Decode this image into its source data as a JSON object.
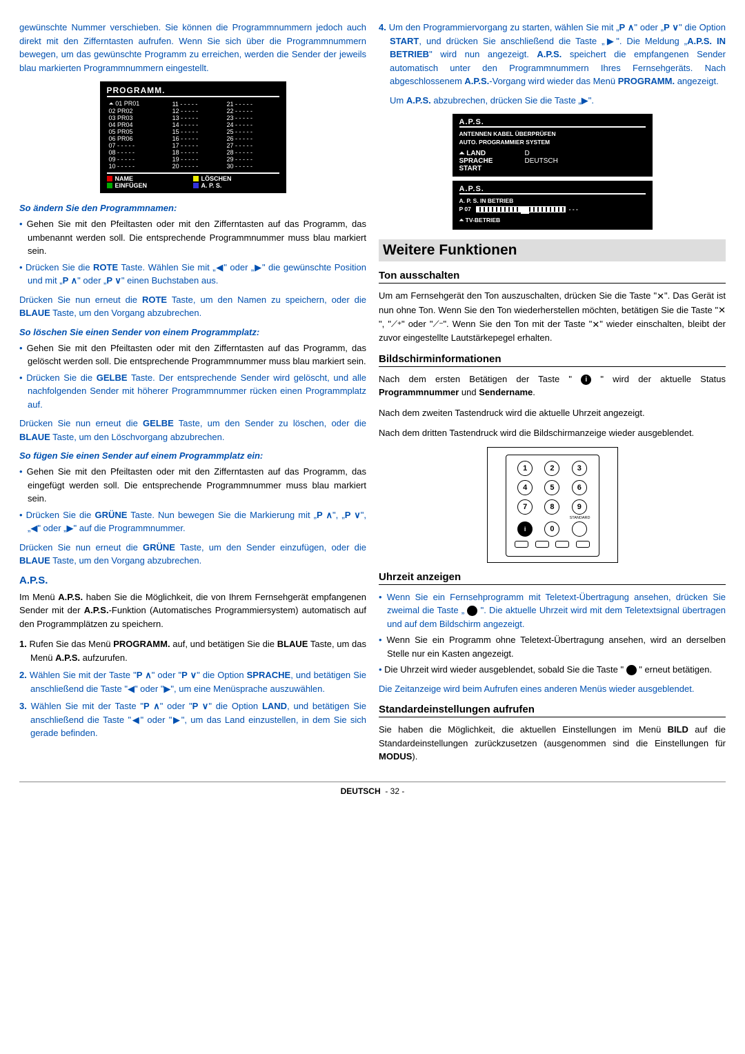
{
  "colLeft": {
    "intro": "gewünschte Nummer verschieben. Sie können die Programmnummern jedoch auch direkt mit den Zifferntasten aufrufen. Wenn Sie sich über die Programmnummern bewegen, um das gewünschte Programm zu erreichen, werden die Sender der jeweils blau markierten Programmnummern eingestellt.",
    "programmBox": {
      "title": "PROGRAMM.",
      "rows": [
        [
          "⏶ 01  PR01",
          "11  - - - - -",
          "21  - - - - -"
        ],
        [
          "  02  PR02",
          "12  - - - - -",
          "22  - - - - -"
        ],
        [
          "  03  PR03",
          "13  - - - - -",
          "23  - - - - -"
        ],
        [
          "  04  PR04",
          "14  - - - - -",
          "24  - - - - -"
        ],
        [
          "  05  PR05",
          "15  - - - - -",
          "25  - - - - -"
        ],
        [
          "  06  PR06",
          "16  - - - - -",
          "26  - - - - -"
        ],
        [
          "  07  - - - - -",
          "17  - - - - -",
          "27  - - - - -"
        ],
        [
          "  08  - - - - -",
          "18  - - - - -",
          "28  - - - - -"
        ],
        [
          "  09  - - - - -",
          "19  - - - - -",
          "29  - - - - -"
        ],
        [
          "  10  - - - - -",
          "20  - - - - -",
          "30  - - - - -"
        ]
      ],
      "footer": [
        "NAME",
        "LÖSCHEN",
        "EINFÜGEN",
        "A. P. S."
      ]
    },
    "sub1": "So ändern Sie den Programmnamen:",
    "sub1_b1": "Gehen Sie mit den Pfeiltasten oder mit den Zifferntasten auf das Programm, das umbenannt werden soll. Die entsprechende Programmnummer muss blau markiert sein.",
    "sub1_b2_a": "Drücken Sie die ",
    "sub1_b2_b": " Taste. Wählen Sie mit „◀\" oder „▶\" die gewünschte Position und mit „",
    "sub1_b2_c": "\" oder „",
    "sub1_b2_d": "\" einen Buchstaben aus.",
    "sub1_p1": "Drücken Sie nun erneut die ROTE Taste, um den Namen zu speichern, oder die BLAUE Taste, um den Vorgang abzubrechen.",
    "sub2": "So löschen Sie einen Sender von einem Programmplatz:",
    "sub2_b1": "Gehen Sie mit den Pfeiltasten oder mit den Zifferntasten auf das Programm, das gelöscht werden soll. Die entsprechende Programmnummer muss blau markiert sein.",
    "sub2_b2": "Drücken Sie die GELBE Taste. Der entsprechende Sender wird gelöscht, und alle nachfolgenden Sender mit höherer Programmnummer rücken einen Programmplatz auf.",
    "sub2_p1": "Drücken Sie nun erneut die GELBE Taste, um den Sender zu löschen, oder die BLAUE Taste, um den Löschvorgang abzubrechen.",
    "sub3": "So fügen Sie einen Sender auf einem Programmplatz ein:",
    "sub3_b1": "Gehen Sie mit den Pfeiltasten oder mit den Zifferntasten auf das Programm, das eingefügt werden soll. Die entsprechende Programmnummer muss blau markiert sein.",
    "sub3_b2": "Drücken Sie die GRÜNE Taste. Nun bewegen Sie die Markierung mit „P ∧\", „P ∨\", „◀\" oder „▶\" auf die Programmnummer.",
    "sub3_p1": "Drücken Sie nun erneut die GRÜNE Taste, um den Sender einzufügen, oder die BLAUE Taste, um den Vorgang abzubrechen.",
    "aps_h": "A.P.S.",
    "aps_p1_a": "Im Menü ",
    "aps_p1_b": " haben Sie die Möglichkeit, die von Ihrem Fernsehgerät empfangenen Sender  mit der ",
    "aps_p1_c": "-Funktion (Automatisches Programmiersystem) automatisch auf den Programmplätzen zu speichern.",
    "aps_li1": "Rufen Sie das Menü PROGRAMM. auf, und betätigen Sie die BLAUE Taste, um das Menü A.P.S. aufzurufen.",
    "aps_li2": "Wählen Sie mit der Taste \"P ∧\" oder \"P ∨\" die Option SPRACHE, und betätigen Sie anschließend die Taste \"◀\" oder \"▶\", um eine Menüsprache auszuwählen.",
    "aps_li3": "Wählen Sie mit der Taste \"P ∧\" oder \"P ∨\" die Option LAND, und betätigen Sie anschließend die Taste \"◀\" oder \"▶\", um das Land einzustellen, in dem Sie sich gerade befinden."
  },
  "colRight": {
    "li4_a": "Um den Programmiervorgang zu starten, wählen Sie mit „",
    "li4_b": "\" oder „",
    "li4_c": "\" die Option ",
    "li4_d": ", und drücken Sie anschließend die Taste „▶\". Die Meldung „",
    "li4_e": "\" wird nun angezeigt. ",
    "li4_f": " speichert die empfangenen Sender automatisch unter den Programmnummern Ihres Fernsehgeräts. Nach abgeschlossenem ",
    "li4_g": "-Vorgang wird wieder das Menü ",
    "li4_h": " angezeigt.",
    "p4b_a": "Um ",
    "p4b_b": " abzubrechen, drücken Sie die Taste „▶\".",
    "apsBox1": {
      "title": "A.P.S.",
      "lines": [
        "ANTENNEN KABEL ÜBERPRÜFEN",
        "AUTO. PROGRAMMIER SYSTEM"
      ],
      "rows": [
        [
          "⏶ LAND",
          "D"
        ],
        [
          "SPRACHE",
          "DEUTSCH"
        ],
        [
          "START",
          ""
        ]
      ]
    },
    "apsBox2": {
      "title": "A.P.S.",
      "line1": "A. P. S. IN BETRIEB",
      "line2a": "P 07",
      "line2b": "- - -",
      "line3": "⏶ TV-BETRIEB"
    },
    "h1": "Weitere Funktionen",
    "h2_1": "Ton ausschalten",
    "ton_p": "Um am Fernsehgerät den Ton auszuschalten, drücken Sie die Taste \"🔇\". Das Gerät ist nun ohne Ton. Wenn Sie den Ton wiederherstellen möchten, betätigen Sie die Taste \"🔇\", \"⟋⁺\" oder \"⟋⁻\". Wenn Sie den Ton mit der Taste \"🔇\" wieder einschalten, bleibt der zuvor eingestellte Lautstärkepegel erhalten.",
    "h2_2": "Bildschirminformationen",
    "bild_p1_a": "Nach dem ersten Betätigen der Taste \" ",
    "bild_p1_b": " \" wird der aktuelle Status ",
    "bild_p1_c": " und ",
    "bild_p1_d": ".",
    "bild_p2": "Nach dem zweiten Tastendruck wird die aktuelle Uhrzeit angezeigt.",
    "bild_p3": "Nach dem dritten Tastendruck wird die Bildschirmanzeige wieder ausgeblendet.",
    "h2_3": "Uhrzeit anzeigen",
    "uhr_b1_a": "Wenn Sie ein Fernsehprogramm mit Teletext-Übertragung ansehen, drücken Sie zweimal die Taste „ ",
    "uhr_b1_b": " \". Die aktuelle Uhrzeit wird mit dem Teletextsignal übertragen und auf dem Bildschirm angezeigt.",
    "uhr_b2": "Wenn Sie ein Programm ohne Teletext-Übertragung ansehen, wird an derselben Stelle nur ein Kasten angezeigt.",
    "uhr_b3_a": "Die Uhrzeit wird wieder ausgeblendet, sobald Sie die Taste \" ",
    "uhr_b3_b": " \" erneut betätigen.",
    "uhr_p": "Die Zeitanzeige wird beim Aufrufen eines anderen Menüs wieder ausgeblendet.",
    "h2_4": "Standardeinstellungen aufrufen",
    "std_p_a": "Sie haben die Möglichkeit, die aktuellen Einstellungen im Menü ",
    "std_p_b": " auf die Standardeinstellungen zurückzusetzen (ausgenommen sind die Einstellungen für ",
    "std_p_c": ")."
  },
  "footer": {
    "lang": "DEUTSCH",
    "page": "- 32 -"
  }
}
